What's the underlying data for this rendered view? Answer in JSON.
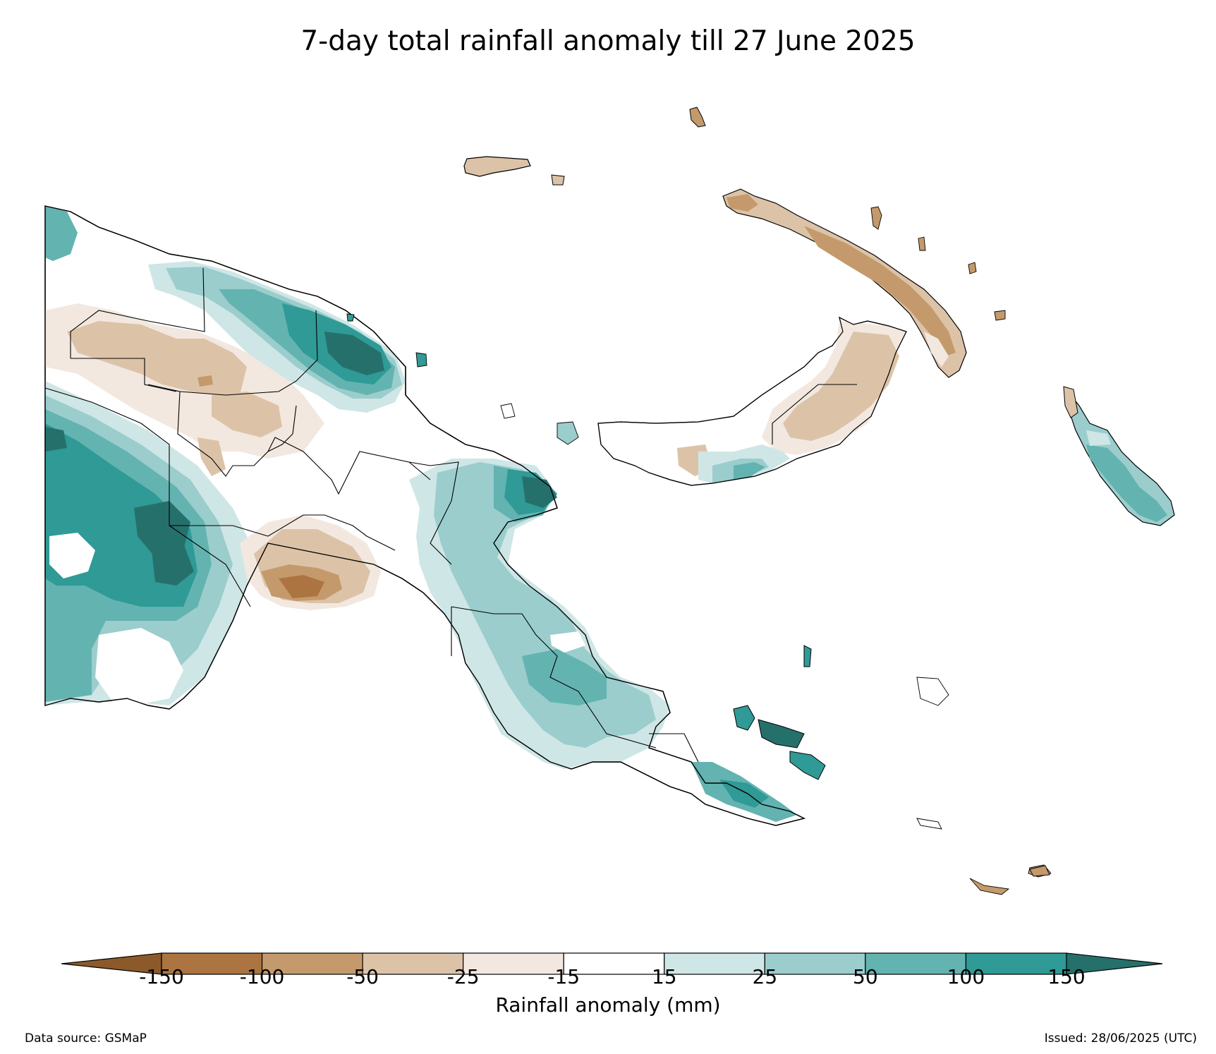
{
  "title": "7-day total rainfall anomaly till 27 June 2025",
  "colorbar": {
    "label": "Rainfall anomaly (mm)",
    "ticks": [
      "-150",
      "-100",
      "-50",
      "-25",
      "-15",
      "15",
      "25",
      "50",
      "100",
      "150"
    ],
    "colors": {
      "below_min": "#8c5a2a",
      "b_150_100": "#ab7440",
      "b_100_50": "#c49a6c",
      "b_50_25": "#dcc3a8",
      "b_25_15": "#f2e8df",
      "b_15_15": "#ffffff",
      "b_15_25": "#cfe6e6",
      "b_25_50": "#9bcdcd",
      "b_50_100": "#63b3b1",
      "b_100_150": "#2f9a96",
      "above_max": "#26706c"
    }
  },
  "footer": {
    "source": "Data source: GSMaP",
    "issued": "Issued: 28/06/2025 (UTC)"
  }
}
